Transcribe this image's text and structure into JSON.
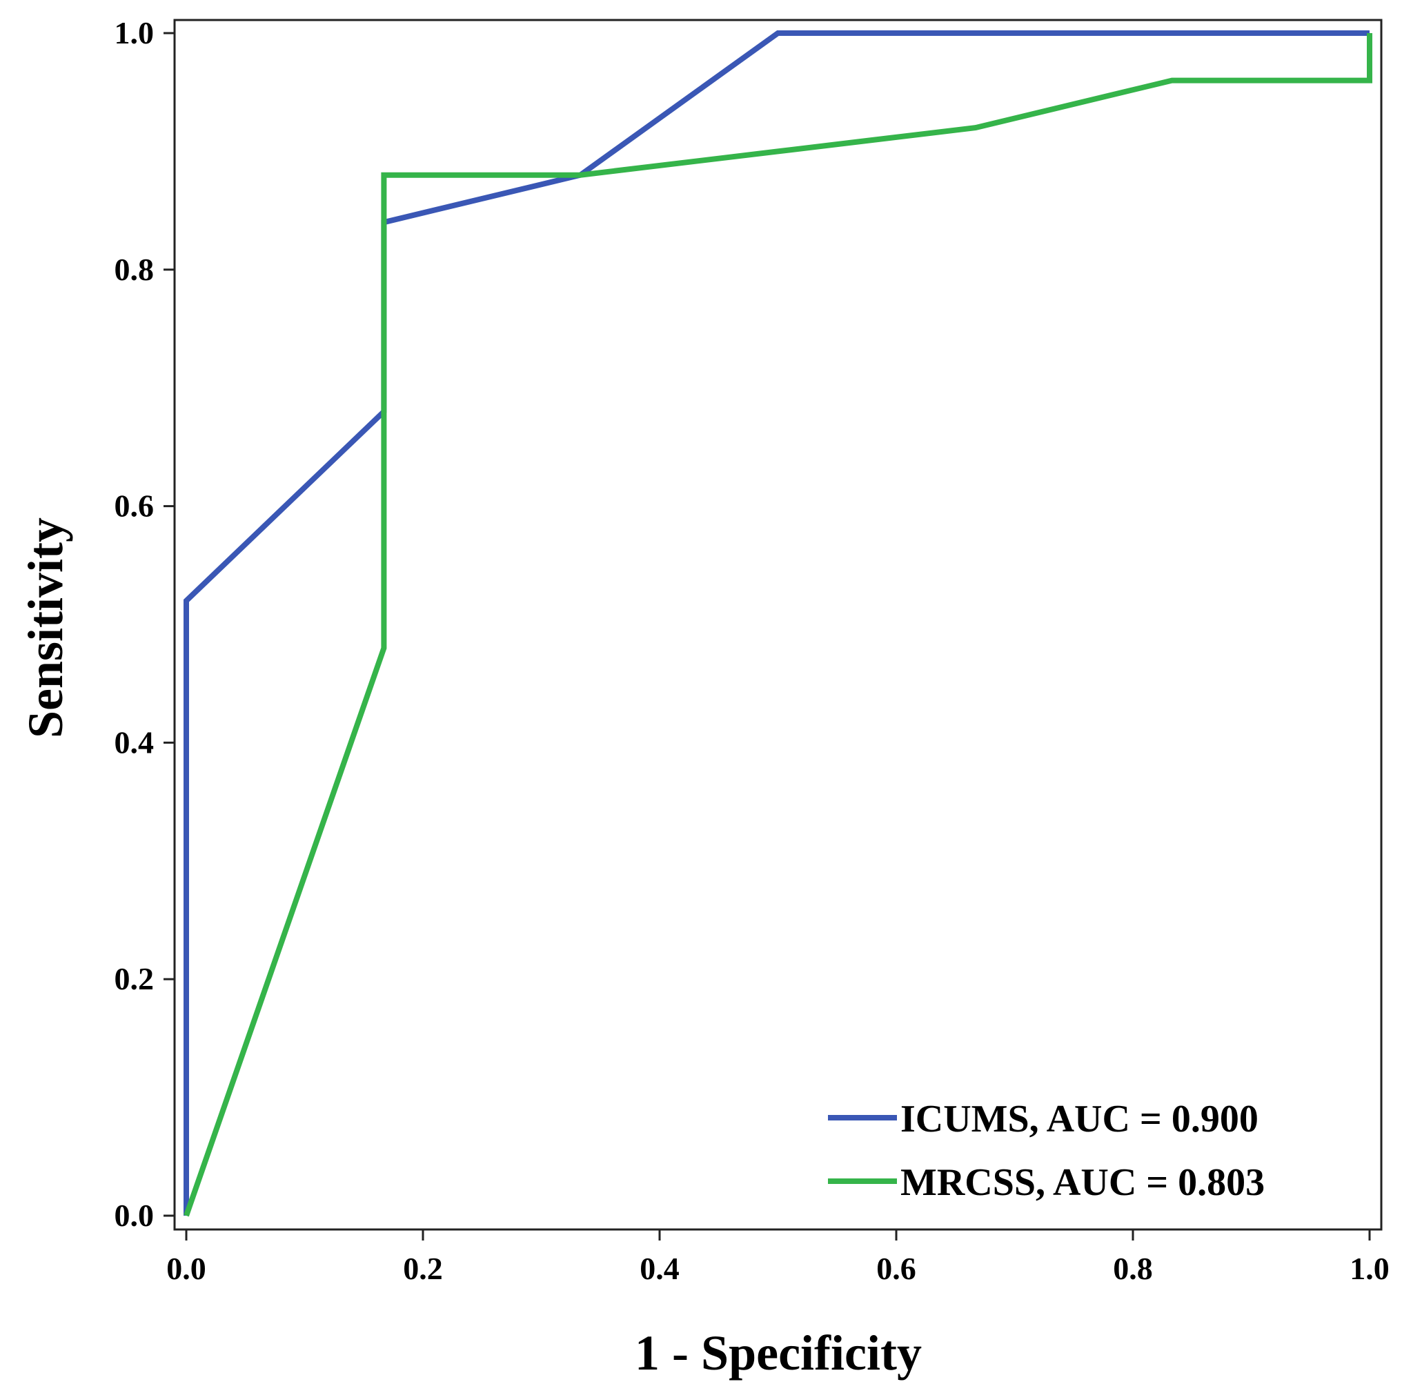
{
  "chart_data": {
    "type": "line",
    "title": "",
    "xlabel": "1 - Specificity",
    "ylabel": "Sensitivity",
    "xlim": [
      0,
      1
    ],
    "ylim": [
      0,
      1
    ],
    "x_ticks": [
      0.0,
      0.2,
      0.4,
      0.6,
      0.8,
      1.0
    ],
    "x_tick_labels": [
      "0.0",
      "0.2",
      "0.4",
      "0.6",
      "0.8",
      "1.0"
    ],
    "y_ticks": [
      0.0,
      0.2,
      0.4,
      0.6,
      0.8,
      1.0
    ],
    "y_tick_labels": [
      "0.0",
      "0.2",
      "0.4",
      "0.6",
      "0.8",
      "1.0"
    ],
    "grid": false,
    "legend_position": "bottom-right",
    "series": [
      {
        "name": "ICUMS, AUC = 0.900",
        "color": "#3a57b5",
        "x": [
          0.0,
          0.0,
          0.167,
          0.167,
          0.333,
          0.5,
          1.0
        ],
        "y": [
          0.0,
          0.52,
          0.68,
          0.84,
          0.88,
          1.0,
          1.0
        ]
      },
      {
        "name": "MRCSS, AUC = 0.803",
        "color": "#35b44a",
        "x": [
          0.0,
          0.167,
          0.167,
          0.333,
          0.5,
          0.667,
          0.833,
          1.0,
          1.0
        ],
        "y": [
          0.0,
          0.48,
          0.88,
          0.88,
          0.9,
          0.92,
          0.96,
          0.96,
          1.0
        ]
      }
    ]
  }
}
